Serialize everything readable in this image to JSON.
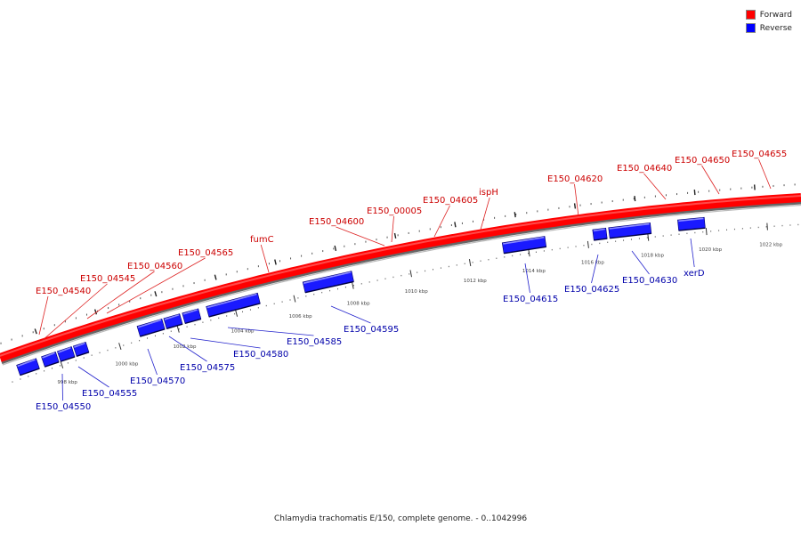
{
  "legend": {
    "items": [
      {
        "label": "Forward",
        "color": "#ff0000"
      },
      {
        "label": "Reverse",
        "color": "#0000ff"
      }
    ]
  },
  "caption": "Chlamydia trachomatis E/150, complete genome. - 0..1042996",
  "colors": {
    "forward_label": "#cc0000",
    "reverse_label": "#0000aa",
    "forward_strand": "#ff0000",
    "reverse_gene": "#1a1aff",
    "backbone": "#777777"
  },
  "ticks": [
    "998 kbp",
    "1000 kbp",
    "1002 kbp",
    "1004 kbp",
    "1006 kbp",
    "1008 kbp",
    "1010 kbp",
    "1012 kbp",
    "1014 kbp",
    "1016 kbp",
    "1018 kbp",
    "1020 kbp",
    "1022 kbp"
  ],
  "forward_labels": [
    "E150_04540",
    "E150_04545",
    "E150_04560",
    "E150_04565",
    "fumC",
    "E150_04600",
    "E150_00005",
    "E150_04605",
    "ispH",
    "E150_04620",
    "E150_04640",
    "E150_04650",
    "E150_04655"
  ],
  "reverse_labels": [
    "E150_04550",
    "E150_04555",
    "E150_04570",
    "E150_04575",
    "E150_04580",
    "E150_04585",
    "E150_04595",
    "E150_04615",
    "E150_04625",
    "E150_04630",
    "xerD"
  ]
}
